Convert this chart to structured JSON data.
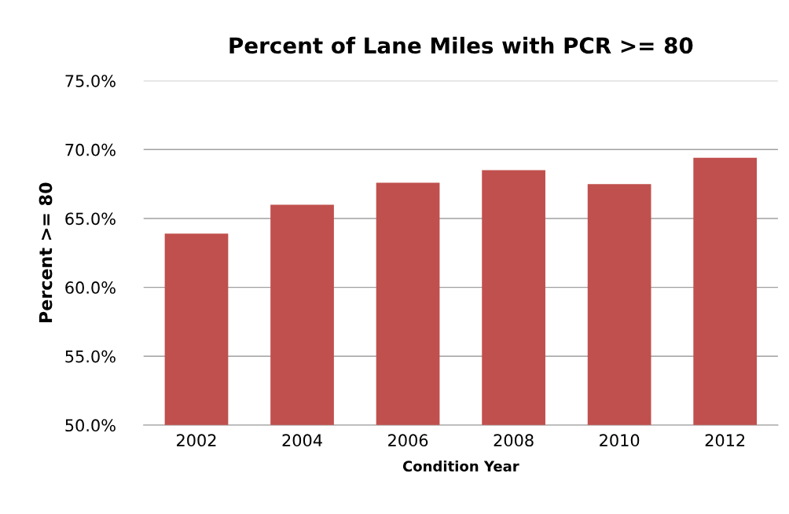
{
  "chart_data": {
    "type": "bar",
    "title": "Percent of Lane Miles with PCR >= 80",
    "xlabel": "Condition Year",
    "ylabel": "Percent >= 80",
    "categories": [
      "2002",
      "2004",
      "2006",
      "2008",
      "2010",
      "2012"
    ],
    "values": [
      63.9,
      66.0,
      67.6,
      68.5,
      67.5,
      69.4
    ],
    "color": "#c0504d",
    "ylim": [
      50,
      75
    ],
    "yticks": [
      {
        "value": 50,
        "label": "50.0%"
      },
      {
        "value": 55,
        "label": "55.0%"
      },
      {
        "value": 60,
        "label": "60.0%"
      },
      {
        "value": 65,
        "label": "65.0%"
      },
      {
        "value": 70,
        "label": "70.0%"
      },
      {
        "value": 75,
        "label": "75.0%"
      }
    ],
    "grid": "y"
  }
}
